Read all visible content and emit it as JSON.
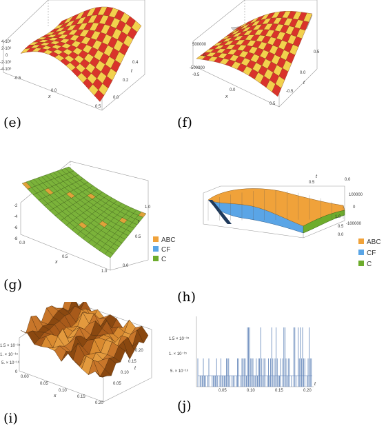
{
  "captions": [
    "(e)",
    "(f)",
    "(g)",
    "(h)",
    "(i)",
    "(j)"
  ],
  "panel_e": {
    "ticks_z": [
      "4·10⁶",
      "2·10⁶",
      "0",
      "-2·10⁶",
      "-4·10⁶"
    ],
    "ticks_x": [
      "-0.5",
      "0.0",
      "0.5"
    ],
    "ticks_t": [
      "0.4",
      "0.2",
      "0.0"
    ],
    "xlabel": "x",
    "tlabel": "t",
    "colors": {
      "light": "#f2d14d",
      "dark": "#d9332b"
    }
  },
  "panel_f": {
    "ticks_z": [
      "500000",
      "0",
      "-500000"
    ],
    "ticks_x": [
      "-0.5",
      "0.0",
      "0.5"
    ],
    "ticks_t": [
      "0.5",
      "0.0",
      "-0.5"
    ],
    "xlabel": "x",
    "tlabel": "t"
  },
  "panel_g": {
    "ticks_z": [
      "-2",
      "-4",
      "-6",
      "-8"
    ],
    "ticks_x": [
      "0.0",
      "0.5",
      "1.0"
    ],
    "ticks_t": [
      "1.0",
      "0.5",
      "0.0"
    ],
    "xlabel": "x",
    "tlabel": "t",
    "legend": [
      "ABC",
      "CF",
      "C"
    ]
  },
  "panel_h": {
    "ticks_z": [
      "100000",
      "0",
      "-100000"
    ],
    "ticks_t": [
      "0.5",
      "0.0"
    ],
    "ticks_x": [
      "1.0",
      "0.5",
      "0.0"
    ],
    "tlabel": "t",
    "legend": [
      "ABC",
      "CF",
      "C"
    ]
  },
  "panel_i": {
    "ticks_z": [
      "1.5 × 10⁻¹⁵",
      "1. × 10⁻¹⁵",
      "5. × 10⁻¹⁶",
      "0"
    ],
    "ticks_x": [
      "0.00",
      "0.05",
      "0.10",
      "0.15",
      "0.20"
    ],
    "ticks_t": [
      "0.20",
      "0.15",
      "0.10",
      "0.05"
    ],
    "xlabel": "x",
    "tlabel": "t"
  },
  "panel_j": {
    "ticks_y": [
      "1.5 × 10⁻¹⁵",
      "1. × 10⁻¹⁵",
      "5. × 10⁻¹⁶"
    ],
    "ticks_x": [
      "0.05",
      "0.10",
      "0.15",
      "0.20"
    ],
    "xlabel": "t"
  },
  "legend_colors": {
    "ABC": "#f0a23a",
    "CF": "#5aa5e6",
    "C": "#6dac2c"
  }
}
